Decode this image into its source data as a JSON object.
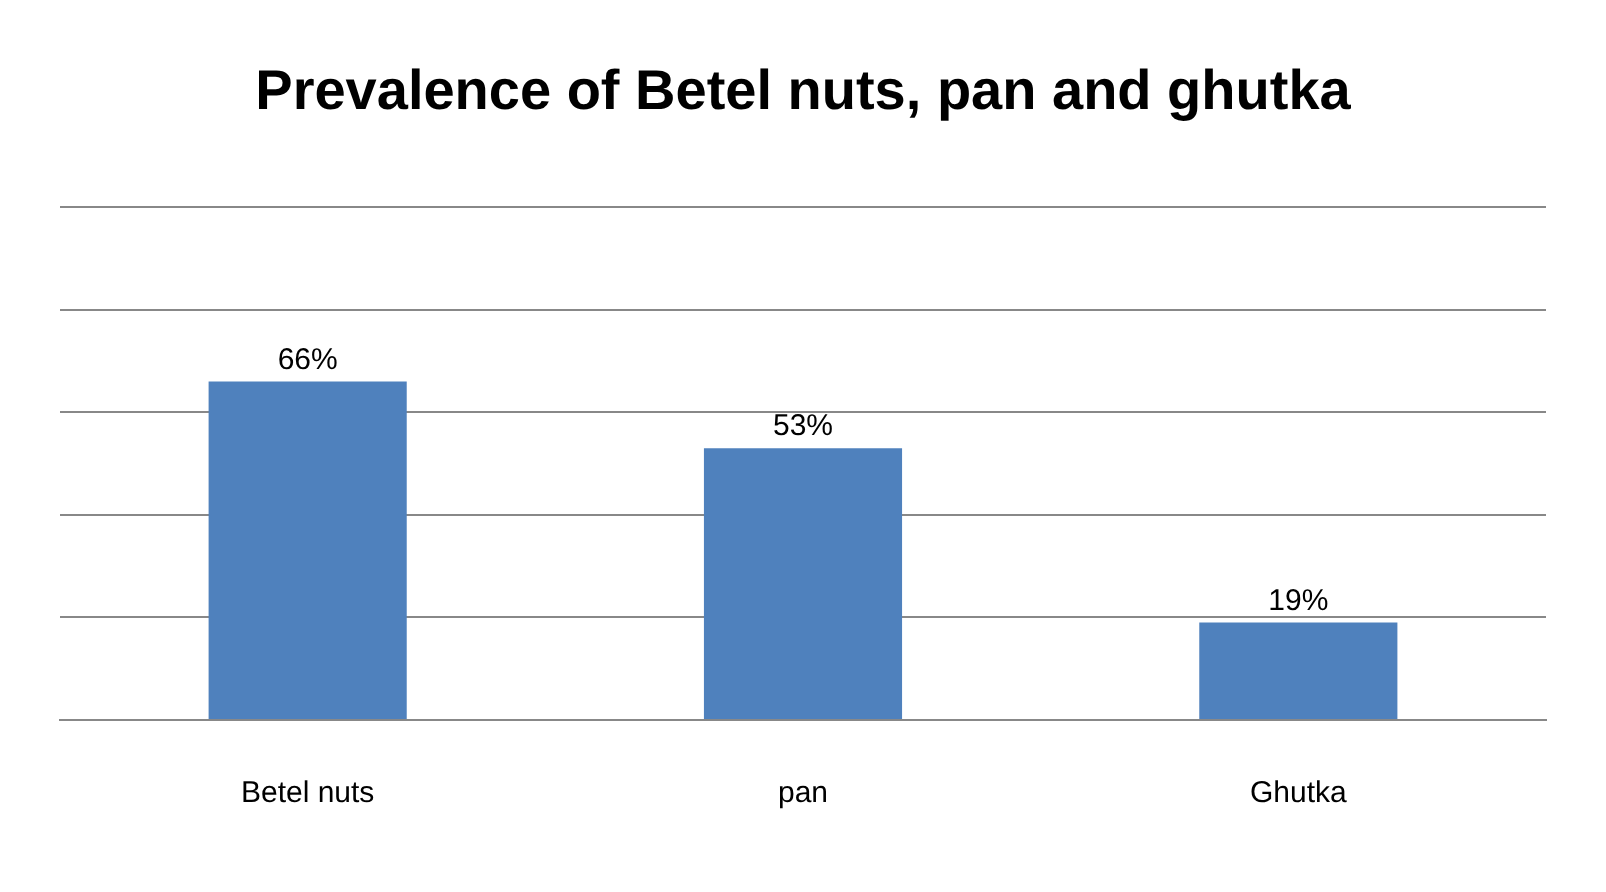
{
  "chart_data": {
    "type": "bar",
    "title": "Prevalence of Betel nuts, pan and ghutka",
    "categories": [
      "Betel nuts",
      "pan",
      "Ghutka"
    ],
    "values": [
      66,
      53,
      19
    ],
    "color": "#4f81bd",
    "value_labels": [
      "66%",
      "53%",
      "19%"
    ],
    "ylim": [
      0,
      100
    ],
    "yticks": [
      {
        "value": 0,
        "label": null
      },
      {
        "value": 20,
        "label": null
      },
      {
        "value": 40,
        "label": null
      },
      {
        "value": 60,
        "label": null
      },
      {
        "value": 80,
        "label": null
      },
      {
        "value": 100,
        "label": null
      }
    ],
    "grid": "y",
    "tick_labels": "x",
    "legend": false
  }
}
